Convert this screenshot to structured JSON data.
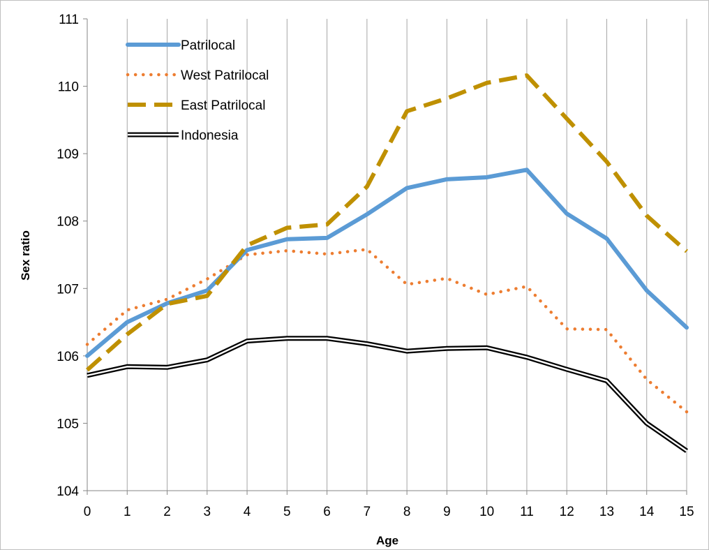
{
  "chart_data": {
    "type": "line",
    "title": "",
    "xlabel": "Age",
    "ylabel": "Sex ratio",
    "x": [
      0,
      1,
      2,
      3,
      4,
      5,
      6,
      7,
      8,
      9,
      10,
      11,
      12,
      13,
      14,
      15
    ],
    "xlim": [
      0,
      15
    ],
    "ylim": [
      104,
      111
    ],
    "yticks": [
      104,
      105,
      106,
      107,
      108,
      109,
      110,
      111
    ],
    "grid": "vertical",
    "legend": "top-left",
    "series": [
      {
        "name": "Patrilocal",
        "style": "solid-thick",
        "color": "#5b9bd5",
        "values": [
          106.0,
          106.5,
          106.78,
          106.97,
          107.57,
          107.73,
          107.75,
          108.1,
          108.49,
          108.62,
          108.65,
          108.76,
          108.11,
          107.74,
          106.97,
          106.42
        ]
      },
      {
        "name": "West Patrilocal",
        "style": "dotted",
        "color": "#ed7d31",
        "values": [
          106.17,
          106.68,
          106.84,
          107.14,
          107.5,
          107.56,
          107.51,
          107.58,
          107.06,
          107.15,
          106.91,
          107.03,
          106.4,
          106.39,
          105.65,
          105.17
        ]
      },
      {
        "name": "East Patrilocal",
        "style": "dashed",
        "color": "#bf9000",
        "values": [
          105.79,
          106.32,
          106.77,
          106.89,
          107.64,
          107.9,
          107.95,
          108.51,
          109.63,
          109.82,
          110.05,
          110.16,
          109.52,
          108.88,
          108.08,
          107.55
        ]
      },
      {
        "name": "Indonesia",
        "style": "double",
        "color": "#000000",
        "values": [
          105.71,
          105.84,
          105.83,
          105.94,
          106.22,
          106.26,
          106.26,
          106.18,
          106.07,
          106.11,
          106.12,
          105.98,
          105.8,
          105.63,
          105.0,
          104.59
        ]
      }
    ]
  }
}
